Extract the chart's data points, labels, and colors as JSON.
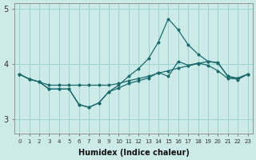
{
  "xlabel": "Humidex (Indice chaleur)",
  "bg_color": "#cceae8",
  "grid_color": "#99d5d2",
  "line_color": "#1a6b6b",
  "x": [
    0,
    1,
    2,
    3,
    4,
    5,
    6,
    7,
    8,
    9,
    10,
    11,
    12,
    13,
    14,
    15,
    16,
    17,
    18,
    19,
    20,
    21,
    22,
    23
  ],
  "line1": [
    3.82,
    3.73,
    3.68,
    3.62,
    3.62,
    3.62,
    3.62,
    3.62,
    3.62,
    3.62,
    3.65,
    3.7,
    3.74,
    3.78,
    3.84,
    3.88,
    3.93,
    3.97,
    4.01,
    4.05,
    4.03,
    3.78,
    3.75,
    3.82
  ],
  "line2": [
    3.82,
    3.73,
    3.68,
    3.55,
    3.55,
    3.55,
    3.27,
    3.22,
    3.3,
    3.5,
    3.62,
    3.78,
    3.92,
    4.1,
    4.4,
    4.82,
    4.62,
    4.35,
    4.18,
    4.05,
    4.02,
    3.78,
    3.72,
    3.82
  ],
  "line3": [
    3.82,
    3.73,
    3.68,
    3.55,
    3.55,
    3.55,
    3.27,
    3.22,
    3.3,
    3.5,
    3.57,
    3.65,
    3.7,
    3.75,
    3.85,
    3.78,
    4.05,
    3.98,
    4.02,
    3.98,
    3.88,
    3.74,
    3.74,
    3.82
  ],
  "ylim_bottom": 2.75,
  "ylim_top": 5.1,
  "xlim_left": -0.5,
  "xlim_right": 23.5,
  "yticks": [
    3,
    4,
    5
  ],
  "ytick_labels": [
    "3",
    "4",
    "5"
  ],
  "xticks": [
    0,
    1,
    2,
    3,
    4,
    5,
    6,
    7,
    8,
    9,
    10,
    11,
    12,
    13,
    14,
    15,
    16,
    17,
    18,
    19,
    20,
    21,
    22,
    23
  ]
}
